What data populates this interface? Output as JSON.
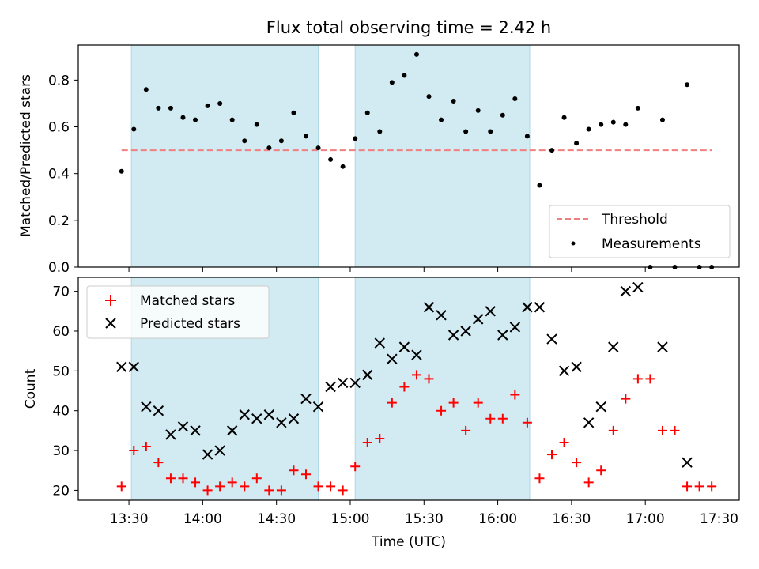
{
  "chart_data": {
    "type": "scatter",
    "title": "Flux total observing time = 2.42 h",
    "xlabel": "Time (UTC)",
    "x_ticks": [
      "13:30",
      "14:00",
      "14:30",
      "15:00",
      "15:30",
      "16:00",
      "16:30",
      "17:00",
      "17:30"
    ],
    "shaded_intervals": [
      [
        "13:31",
        "14:47"
      ],
      [
        "15:02",
        "16:13"
      ]
    ],
    "shade_color": "#add8e6",
    "top_panel": {
      "ylabel": "Matched/Predicted stars",
      "ylim": [
        0,
        0.95
      ],
      "y_ticks": [
        "0.0",
        "0.2",
        "0.4",
        "0.6",
        "0.8"
      ],
      "legend_position": "lower right",
      "threshold": {
        "name": "Threshold",
        "value": 0.5,
        "x_range": [
          "13:27",
          "17:27"
        ],
        "color": "#f08080",
        "style": "dashed"
      },
      "measurements": {
        "name": "Measurements",
        "color": "#000000",
        "points": [
          [
            "13:27",
            0.41
          ],
          [
            "13:32",
            0.59
          ],
          [
            "13:37",
            0.76
          ],
          [
            "13:42",
            0.68
          ],
          [
            "13:47",
            0.68
          ],
          [
            "13:52",
            0.64
          ],
          [
            "13:57",
            0.63
          ],
          [
            "14:02",
            0.69
          ],
          [
            "14:07",
            0.7
          ],
          [
            "14:12",
            0.63
          ],
          [
            "14:17",
            0.54
          ],
          [
            "14:22",
            0.61
          ],
          [
            "14:27",
            0.51
          ],
          [
            "14:32",
            0.54
          ],
          [
            "14:37",
            0.66
          ],
          [
            "14:42",
            0.56
          ],
          [
            "14:47",
            0.51
          ],
          [
            "14:52",
            0.46
          ],
          [
            "14:57",
            0.43
          ],
          [
            "15:02",
            0.55
          ],
          [
            "15:07",
            0.66
          ],
          [
            "15:12",
            0.58
          ],
          [
            "15:17",
            0.79
          ],
          [
            "15:22",
            0.82
          ],
          [
            "15:27",
            0.91
          ],
          [
            "15:32",
            0.73
          ],
          [
            "15:37",
            0.63
          ],
          [
            "15:42",
            0.71
          ],
          [
            "15:47",
            0.58
          ],
          [
            "15:52",
            0.67
          ],
          [
            "15:57",
            0.58
          ],
          [
            "16:02",
            0.65
          ],
          [
            "16:07",
            0.72
          ],
          [
            "16:12",
            0.56
          ],
          [
            "16:17",
            0.35
          ],
          [
            "16:22",
            0.5
          ],
          [
            "16:27",
            0.64
          ],
          [
            "16:32",
            0.53
          ],
          [
            "16:37",
            0.59
          ],
          [
            "16:42",
            0.61
          ],
          [
            "16:47",
            0.62
          ],
          [
            "16:52",
            0.61
          ],
          [
            "16:57",
            0.68
          ],
          [
            "17:02",
            0.0
          ],
          [
            "17:07",
            0.63
          ],
          [
            "17:12",
            0.0
          ],
          [
            "17:17",
            0.78
          ],
          [
            "17:22",
            0.0
          ],
          [
            "17:27",
            0.0
          ]
        ]
      }
    },
    "bottom_panel": {
      "ylabel": "Count",
      "ylim": [
        17.5,
        73.5
      ],
      "y_ticks": [
        "20",
        "30",
        "40",
        "50",
        "60",
        "70"
      ],
      "legend_position": "upper left",
      "series": [
        {
          "name": "Matched stars",
          "marker": "plus",
          "color": "#ff0000",
          "points": [
            [
              "13:27",
              21
            ],
            [
              "13:32",
              30
            ],
            [
              "13:37",
              31
            ],
            [
              "13:42",
              27
            ],
            [
              "13:47",
              23
            ],
            [
              "13:52",
              23
            ],
            [
              "13:57",
              22
            ],
            [
              "14:02",
              20
            ],
            [
              "14:07",
              21
            ],
            [
              "14:12",
              22
            ],
            [
              "14:17",
              21
            ],
            [
              "14:22",
              23
            ],
            [
              "14:27",
              20
            ],
            [
              "14:32",
              20
            ],
            [
              "14:37",
              25
            ],
            [
              "14:42",
              24
            ],
            [
              "14:47",
              21
            ],
            [
              "14:52",
              21
            ],
            [
              "14:57",
              20
            ],
            [
              "15:02",
              26
            ],
            [
              "15:07",
              32
            ],
            [
              "15:12",
              33
            ],
            [
              "15:17",
              42
            ],
            [
              "15:22",
              46
            ],
            [
              "15:27",
              49
            ],
            [
              "15:32",
              48
            ],
            [
              "15:37",
              40
            ],
            [
              "15:42",
              42
            ],
            [
              "15:47",
              35
            ],
            [
              "15:52",
              42
            ],
            [
              "15:57",
              38
            ],
            [
              "16:02",
              38
            ],
            [
              "16:07",
              44
            ],
            [
              "16:12",
              37
            ],
            [
              "16:17",
              23
            ],
            [
              "16:22",
              29
            ],
            [
              "16:27",
              32
            ],
            [
              "16:32",
              27
            ],
            [
              "16:37",
              22
            ],
            [
              "16:42",
              25
            ],
            [
              "16:47",
              35
            ],
            [
              "16:52",
              43
            ],
            [
              "16:57",
              48
            ],
            [
              "17:02",
              48
            ],
            [
              "17:07",
              35
            ],
            [
              "17:12",
              35
            ],
            [
              "17:17",
              21
            ],
            [
              "17:22",
              21
            ],
            [
              "17:27",
              21
            ]
          ]
        },
        {
          "name": "Predicted stars",
          "marker": "x",
          "color": "#000000",
          "points": [
            [
              "13:27",
              51
            ],
            [
              "13:32",
              51
            ],
            [
              "13:37",
              41
            ],
            [
              "13:42",
              40
            ],
            [
              "13:47",
              34
            ],
            [
              "13:52",
              36
            ],
            [
              "13:57",
              35
            ],
            [
              "14:02",
              29
            ],
            [
              "14:07",
              30
            ],
            [
              "14:12",
              35
            ],
            [
              "14:17",
              39
            ],
            [
              "14:22",
              38
            ],
            [
              "14:27",
              39
            ],
            [
              "14:32",
              37
            ],
            [
              "14:37",
              38
            ],
            [
              "14:42",
              43
            ],
            [
              "14:47",
              41
            ],
            [
              "14:52",
              46
            ],
            [
              "14:57",
              47
            ],
            [
              "15:02",
              47
            ],
            [
              "15:07",
              49
            ],
            [
              "15:12",
              57
            ],
            [
              "15:17",
              53
            ],
            [
              "15:22",
              56
            ],
            [
              "15:27",
              54
            ],
            [
              "15:32",
              66
            ],
            [
              "15:37",
              64
            ],
            [
              "15:42",
              59
            ],
            [
              "15:47",
              60
            ],
            [
              "15:52",
              63
            ],
            [
              "15:57",
              65
            ],
            [
              "16:02",
              59
            ],
            [
              "16:07",
              61
            ],
            [
              "16:12",
              66
            ],
            [
              "16:17",
              66
            ],
            [
              "16:22",
              58
            ],
            [
              "16:27",
              50
            ],
            [
              "16:32",
              51
            ],
            [
              "16:37",
              37
            ],
            [
              "16:42",
              41
            ],
            [
              "16:47",
              56
            ],
            [
              "16:52",
              70
            ],
            [
              "16:57",
              71
            ],
            [
              "17:07",
              56
            ],
            [
              "17:17",
              27
            ]
          ]
        }
      ]
    }
  }
}
